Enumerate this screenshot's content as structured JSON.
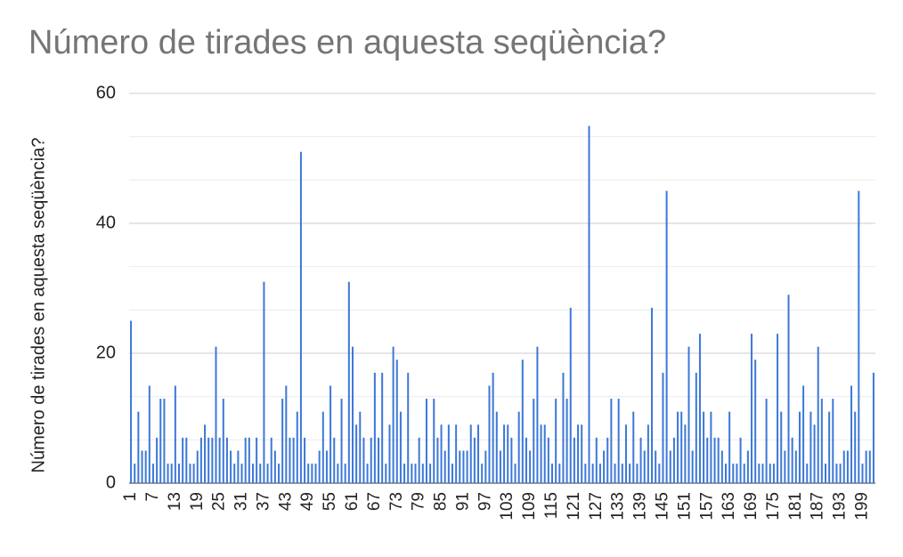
{
  "chart_data": {
    "type": "bar",
    "title": "Número de tirades en aquesta seqüència?",
    "y_label": "Número de tirades en aquesta seqüència?",
    "categories": [
      1,
      null,
      null,
      null,
      null,
      null,
      7,
      null,
      null,
      null,
      null,
      null,
      13,
      null,
      null,
      null,
      null,
      null,
      19,
      null,
      null,
      null,
      null,
      null,
      25,
      null,
      null,
      null,
      null,
      null,
      31,
      null,
      null,
      null,
      null,
      null,
      37,
      null,
      null,
      null,
      null,
      null,
      43,
      null,
      null,
      null,
      null,
      null,
      49,
      null,
      null,
      null,
      null,
      null,
      55,
      null,
      null,
      null,
      null,
      null,
      61,
      null,
      null,
      null,
      null,
      null,
      67,
      null,
      null,
      null,
      null,
      null,
      73,
      null,
      null,
      null,
      null,
      null,
      79,
      null,
      null,
      null,
      null,
      null,
      85,
      null,
      null,
      null,
      null,
      null,
      91,
      null,
      null,
      null,
      null,
      null,
      97,
      null,
      null,
      null,
      null,
      null,
      103,
      null,
      null,
      null,
      null,
      null,
      109,
      null,
      null,
      null,
      null,
      null,
      115,
      null,
      null,
      null,
      null,
      null,
      121,
      null,
      null,
      null,
      null,
      null,
      127,
      null,
      null,
      null,
      null,
      null,
      133,
      null,
      null,
      null,
      null,
      null,
      139,
      null,
      null,
      null,
      null,
      null,
      145,
      null,
      null,
      null,
      null,
      null,
      151,
      null,
      null,
      null,
      null,
      null,
      157,
      null,
      null,
      null,
      null,
      null,
      163,
      null,
      null,
      null,
      null,
      null,
      169,
      null,
      null,
      null,
      null,
      null,
      175,
      null,
      null,
      null,
      null,
      null,
      181,
      null,
      null,
      null,
      null,
      null,
      187,
      null,
      null,
      null,
      null,
      null,
      193,
      null,
      null,
      null,
      null,
      null,
      199,
      null,
      null,
      null
    ],
    "values": [
      25,
      3,
      11,
      5,
      5,
      15,
      3,
      7,
      13,
      13,
      3,
      3,
      15,
      3,
      7,
      7,
      3,
      3,
      5,
      7,
      9,
      7,
      7,
      21,
      7,
      13,
      7,
      5,
      3,
      5,
      3,
      7,
      7,
      3,
      7,
      3,
      31,
      3,
      7,
      5,
      3,
      13,
      15,
      7,
      7,
      11,
      51,
      7,
      3,
      3,
      3,
      5,
      11,
      5,
      15,
      7,
      3,
      13,
      3,
      31,
      21,
      9,
      11,
      7,
      3,
      7,
      17,
      7,
      17,
      3,
      9,
      21,
      19,
      11,
      3,
      17,
      3,
      3,
      7,
      3,
      13,
      3,
      13,
      7,
      9,
      5,
      9,
      3,
      9,
      5,
      5,
      5,
      9,
      7,
      9,
      3,
      5,
      15,
      17,
      11,
      5,
      9,
      9,
      7,
      3,
      11,
      19,
      7,
      5,
      13,
      21,
      9,
      9,
      7,
      3,
      13,
      3,
      17,
      13,
      27,
      7,
      9,
      9,
      3,
      55,
      3,
      7,
      3,
      5,
      7,
      13,
      3,
      13,
      3,
      9,
      3,
      11,
      3,
      7,
      5,
      9,
      27,
      5,
      3,
      17,
      45,
      5,
      7,
      11,
      11,
      9,
      21,
      5,
      17,
      23,
      11,
      7,
      11,
      7,
      7,
      5,
      3,
      11,
      3,
      3,
      7,
      3,
      5,
      23,
      19,
      3,
      3,
      13,
      3,
      3,
      23,
      11,
      5,
      29,
      7,
      5,
      11,
      15,
      3,
      11,
      9,
      21,
      13,
      3,
      11,
      13,
      3,
      3,
      5,
      5,
      15,
      11,
      45,
      3,
      5,
      5,
      17
    ],
    "color": "#3c78d8",
    "ylim": [
      0,
      60
    ],
    "yticks": [
      0,
      20,
      40,
      60
    ],
    "grid": true
  }
}
